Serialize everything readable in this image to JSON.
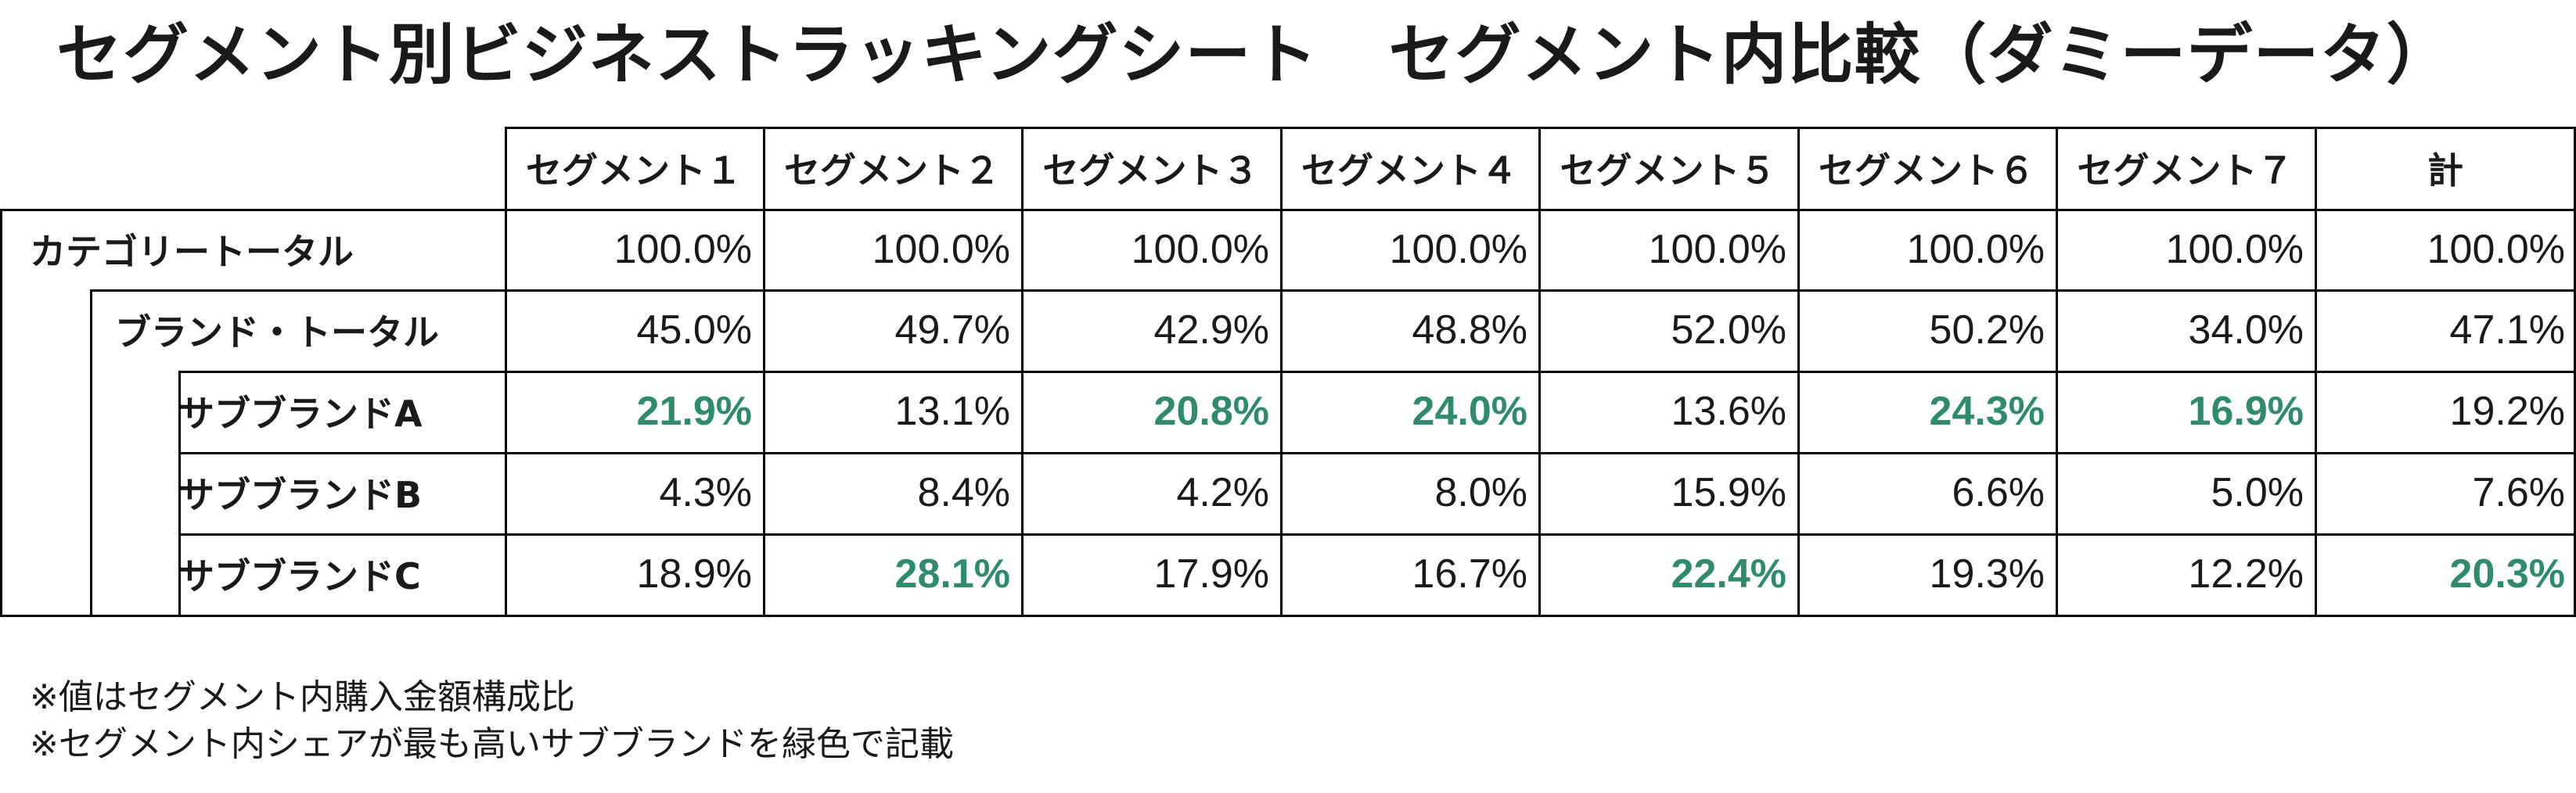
{
  "title": {
    "main": "セグメント別ビジネストラッキングシート",
    "sub": "セグメント内比較（ダミーデータ）"
  },
  "table": {
    "headers": [
      "セグメント１",
      "セグメント２",
      "セグメント３",
      "セグメント４",
      "セグメント５",
      "セグメント６",
      "セグメント７",
      "計"
    ],
    "rows": [
      {
        "label": "カテゴリートータル",
        "values": [
          "100.0%",
          "100.0%",
          "100.0%",
          "100.0%",
          "100.0%",
          "100.0%",
          "100.0%",
          "100.0%"
        ],
        "highlight": [
          false,
          false,
          false,
          false,
          false,
          false,
          false,
          false
        ]
      },
      {
        "label": "ブランド・トータル",
        "values": [
          "45.0%",
          "49.7%",
          "42.9%",
          "48.8%",
          "52.0%",
          "50.2%",
          "34.0%",
          "47.1%"
        ],
        "highlight": [
          false,
          false,
          false,
          false,
          false,
          false,
          false,
          false
        ]
      },
      {
        "label": "サブブランドA",
        "values": [
          "21.9%",
          "13.1%",
          "20.8%",
          "24.0%",
          "13.6%",
          "24.3%",
          "16.9%",
          "19.2%"
        ],
        "highlight": [
          true,
          false,
          true,
          true,
          false,
          true,
          true,
          false
        ]
      },
      {
        "label": "サブブランドB",
        "values": [
          "4.3%",
          "8.4%",
          "4.2%",
          "8.0%",
          "15.9%",
          "6.6%",
          "5.0%",
          "7.6%"
        ],
        "highlight": [
          false,
          false,
          false,
          false,
          false,
          false,
          false,
          false
        ]
      },
      {
        "label": "サブブランドC",
        "values": [
          "18.9%",
          "28.1%",
          "17.9%",
          "16.7%",
          "22.4%",
          "19.3%",
          "12.2%",
          "20.3%"
        ],
        "highlight": [
          false,
          true,
          false,
          false,
          true,
          false,
          false,
          true
        ]
      }
    ]
  },
  "notes": [
    "※値はセグメント内購入金額構成比",
    "※セグメント内シェアが最も高いサブブランドを緑色で記載"
  ],
  "colors": {
    "highlight": "#2e8b6e",
    "text": "#1a1a1a",
    "border": "#000000"
  }
}
